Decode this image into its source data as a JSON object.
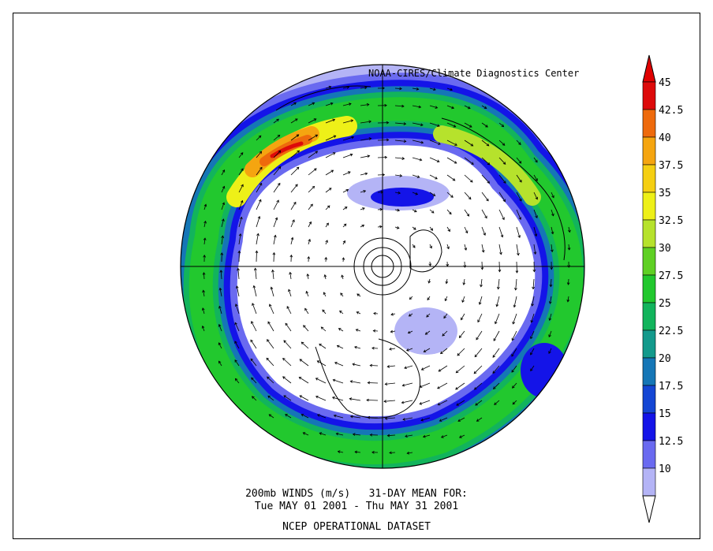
{
  "credit": "NOAA-CIRES/Climate Diagnostics Center",
  "caption": {
    "line1": "200mb WINDS (m/s)   31-DAY MEAN FOR:",
    "line2": "Tue MAY 01 2001 - Thu MAY 31 2001",
    "line3": "NCEP OPERATIONAL DATASET"
  },
  "colorbar": {
    "levels": [
      {
        "label": "45",
        "color": "#dd0a0a"
      },
      {
        "label": "42.5",
        "color": "#ee6a0c"
      },
      {
        "label": "40",
        "color": "#f5a510"
      },
      {
        "label": "37.5",
        "color": "#f5cf12"
      },
      {
        "label": "35",
        "color": "#eef018"
      },
      {
        "label": "32.5",
        "color": "#b6e22c"
      },
      {
        "label": "30",
        "color": "#5fd024"
      },
      {
        "label": "27.5",
        "color": "#22c82e"
      },
      {
        "label": "25",
        "color": "#12b45c"
      },
      {
        "label": "22.5",
        "color": "#139a8c"
      },
      {
        "label": "20",
        "color": "#1576b6"
      },
      {
        "label": "17.5",
        "color": "#1446d4"
      },
      {
        "label": "15",
        "color": "#1414e8"
      },
      {
        "label": "12.5",
        "color": "#6a6af0"
      },
      {
        "label": "10",
        "color": "#b4b4f6"
      }
    ],
    "top_triangle_color": "#e00000",
    "bottom_triangle_color": "#ffffff"
  }
}
